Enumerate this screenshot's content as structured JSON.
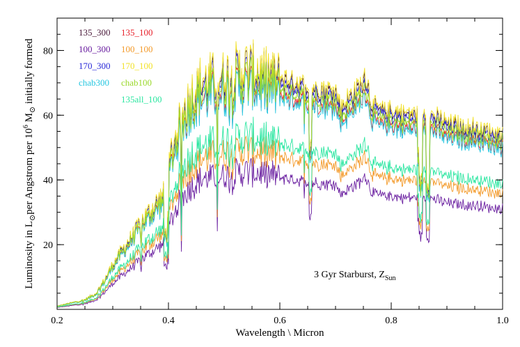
{
  "chart_data": {
    "type": "line",
    "title": "",
    "xlabel": "Wavelength \\ Micron",
    "ylabel_parts": {
      "prefix": "Luminosity in L",
      "sub1": "⊙",
      "middle": "per Angstrom per 10",
      "sup": "6",
      "middle2": " M",
      "sub2": "⊙",
      "suffix": " initially formed"
    },
    "xlim": [
      0.2,
      1.0
    ],
    "ylim": [
      0,
      90
    ],
    "x_ticks": [
      0.2,
      0.4,
      0.6,
      0.8,
      1.0
    ],
    "x_tick_labels": [
      "0.2",
      "0.4",
      "0.6",
      "0.8",
      "1.0"
    ],
    "y_ticks": [
      20,
      40,
      60,
      80
    ],
    "y_tick_labels": [
      "20",
      "40",
      "60",
      "80"
    ],
    "grid": false,
    "legend_placement": "top-left",
    "annotation": {
      "text": "3 Gyr Starburst, Z",
      "sub": "Sun"
    },
    "series": [
      {
        "name": "135_300",
        "color": "#4a1a3a",
        "scale": 1.0
      },
      {
        "name": "135_100",
        "color": "#e8202a",
        "scale": 0.935
      },
      {
        "name": "100_300",
        "color": "#6a1fa0",
        "scale": 0.575
      },
      {
        "name": "100_100",
        "color": "#f39a2a",
        "scale": 0.665
      },
      {
        "name": "170_300",
        "color": "#2a2ad8",
        "scale": 0.985
      },
      {
        "name": "170_100",
        "color": "#f2e22a",
        "scale": 1.015
      },
      {
        "name": "chab300",
        "color": "#26c6e0",
        "scale": 0.92
      },
      {
        "name": "chab100",
        "color": "#9ad82a",
        "scale": 0.96
      },
      {
        "name": "135all_100",
        "color": "#2ae6a0",
        "scale": 0.72
      }
    ],
    "base_curve": {
      "x": [
        0.2,
        0.225,
        0.25,
        0.27,
        0.285,
        0.3,
        0.32,
        0.34,
        0.36,
        0.38,
        0.395,
        0.405,
        0.42,
        0.44,
        0.46,
        0.48,
        0.5,
        0.52,
        0.54,
        0.56,
        0.58,
        0.6,
        0.62,
        0.64,
        0.66,
        0.68,
        0.7,
        0.71,
        0.72,
        0.74,
        0.755,
        0.765,
        0.78,
        0.8,
        0.82,
        0.84,
        0.86,
        0.88,
        0.9,
        0.92,
        0.94,
        0.96,
        0.98,
        1.0
      ],
      "y": [
        1.0,
        2.0,
        3.0,
        5.0,
        9.0,
        14.0,
        19.0,
        24.0,
        29.0,
        33.0,
        36.0,
        48.0,
        58.0,
        66.0,
        70.0,
        71.0,
        72.0,
        73.0,
        74.0,
        73.5,
        72.5,
        71.0,
        70.0,
        69.0,
        68.0,
        67.5,
        67.0,
        62.0,
        64.0,
        68.0,
        71.0,
        63.0,
        61.0,
        61.0,
        60.0,
        60.0,
        60.5,
        59.0,
        57.0,
        56.5,
        56.0,
        55.5,
        54.5,
        54.0
      ]
    }
  }
}
